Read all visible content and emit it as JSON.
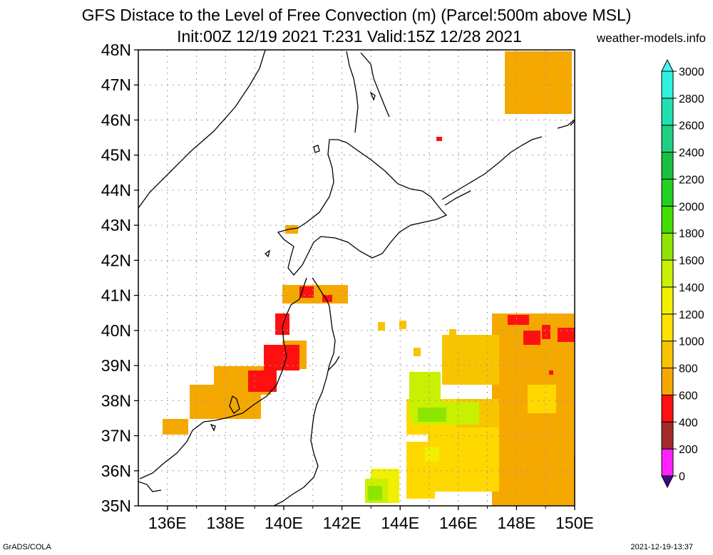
{
  "title_line1": "GFS Distace to the Level of Free Convection (m) (Parcel:500m above MSL)",
  "title_line2": "Init:00Z 12/19 2021 T:231 Valid:15Z 12/28 2021",
  "site": "weather-models.info",
  "footer_left": "GrADS/COLA",
  "footer_right": "2021-12-19-13:37",
  "map": {
    "lon_range": [
      135,
      150
    ],
    "lat_range": [
      35,
      48
    ],
    "lat_labels": [
      "35N",
      "36N",
      "37N",
      "38N",
      "39N",
      "40N",
      "41N",
      "42N",
      "43N",
      "44N",
      "45N",
      "46N",
      "47N",
      "48N"
    ],
    "lon_labels": [
      "136E",
      "138E",
      "140E",
      "142E",
      "144E",
      "146E",
      "148E",
      "150E"
    ]
  },
  "colorbar": {
    "labels": [
      "0",
      "200",
      "400",
      "600",
      "800",
      "1000",
      "1200",
      "1400",
      "1600",
      "1800",
      "2000",
      "2200",
      "2400",
      "2600",
      "2800",
      "3000"
    ],
    "colors": [
      "#3d0b8a",
      "#ff22ff",
      "#a52a2a",
      "#ff1010",
      "#f5a800",
      "#f8c400",
      "#ffe000",
      "#f0f000",
      "#c8f000",
      "#8ee600",
      "#44dd00",
      "#22d020",
      "#19c040",
      "#20d080",
      "#20e0b0",
      "#30f0e0",
      "#48f6f0"
    ]
  },
  "fields": [
    {
      "level": "600-800",
      "color": "#f5a800",
      "cells": [
        [
          228,
          588,
          36,
          22
        ],
        [
          266,
          540,
          100,
          48
        ],
        [
          300,
          514,
          80,
          40
        ],
        [
          396,
          478,
          34,
          40
        ],
        [
          396,
          400,
          92,
          26
        ],
        [
          400,
          316,
          18,
          12
        ],
        [
          708,
          72,
          94,
          88
        ],
        [
          690,
          440,
          115,
          270
        ],
        [
          760,
          640,
          46,
          70
        ]
      ]
    },
    {
      "level": "800-1000",
      "color": "#f8c400",
      "cells": [
        [
          620,
          470,
          80,
          70
        ],
        [
          640,
          560,
          60,
          40
        ],
        [
          560,
          450,
          10,
          12
        ],
        [
          580,
          488,
          10,
          12
        ],
        [
          630,
          462,
          10,
          12
        ],
        [
          530,
          452,
          10,
          12
        ]
      ]
    },
    {
      "level": "1000-1200",
      "color": "#ffd800",
      "cells": [
        [
          570,
          560,
          70,
          50
        ],
        [
          600,
          600,
          100,
          90
        ],
        [
          570,
          620,
          40,
          80
        ],
        [
          740,
          540,
          40,
          40
        ]
      ]
    },
    {
      "level": "1200-1400",
      "color": "#f0f000",
      "cells": [
        [
          578,
          540,
          30,
          30
        ],
        [
          596,
          628,
          20,
          20
        ],
        [
          520,
          658,
          40,
          48
        ]
      ]
    },
    {
      "level": "1400-1600",
      "color": "#c8f000",
      "cells": [
        [
          574,
          522,
          44,
          66
        ],
        [
          578,
          564,
          94,
          32
        ],
        [
          512,
          672,
          32,
          34
        ]
      ]
    },
    {
      "level": "1600-1800",
      "color": "#8ee600",
      "cells": [
        [
          586,
          572,
          40,
          20
        ],
        [
          516,
          682,
          20,
          20
        ]
      ]
    },
    {
      "level": "400-600",
      "color": "#ff1010",
      "cells": [
        [
          386,
          440,
          20,
          30
        ],
        [
          370,
          484,
          50,
          36
        ],
        [
          348,
          520,
          40,
          30
        ],
        [
          420,
          402,
          20,
          16
        ],
        [
          452,
          414,
          14,
          10
        ],
        [
          612,
          192,
          8,
          6
        ],
        [
          712,
          442,
          30,
          14
        ],
        [
          734,
          464,
          24,
          20
        ],
        [
          760,
          456,
          12,
          20
        ],
        [
          782,
          460,
          24,
          20
        ],
        [
          770,
          520,
          6,
          6
        ]
      ]
    }
  ],
  "legend_levels": [
    "0",
    "200",
    "400",
    "600",
    "800",
    "1000",
    "1200",
    "1400",
    "1600",
    "1800",
    "2000",
    "2200",
    "2400",
    "2600",
    "2800",
    "3000"
  ]
}
